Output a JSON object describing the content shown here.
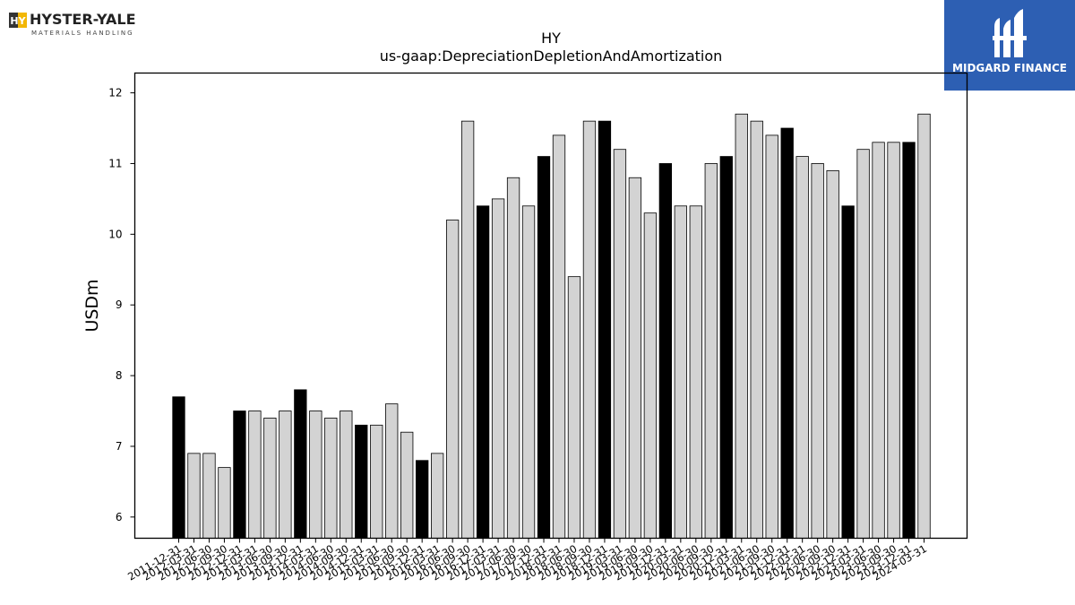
{
  "branding": {
    "left_logo": {
      "name": "HYSTER-YALE",
      "tagline": "MATERIALS HANDLING",
      "mark_text": "HY"
    },
    "right_logo": {
      "name": "MIDGARD FINANCE"
    }
  },
  "chart_data": {
    "type": "bar",
    "title": "HY",
    "subtitle": "us-gaap:DepreciationDepletionAndAmortization",
    "xlabel": "",
    "ylabel": "USDm",
    "ylim": [
      5.7,
      12.28
    ],
    "yticks": [
      6,
      7,
      8,
      9,
      10,
      11,
      12
    ],
    "grid": false,
    "colors": {
      "fourth_quarter": "#000000",
      "other": "#d3d3d3",
      "edge": "#000000"
    },
    "categories": [
      "2011-12-31",
      "2012-03-31",
      "2012-06-30",
      "2012-09-30",
      "2012-12-31",
      "2013-03-31",
      "2013-06-30",
      "2013-09-30",
      "2013-12-31",
      "2014-03-31",
      "2014-06-30",
      "2014-09-30",
      "2014-12-31",
      "2015-03-31",
      "2015-06-30",
      "2015-09-30",
      "2015-12-31",
      "2016-03-31",
      "2016-06-30",
      "2016-09-30",
      "2016-12-31",
      "2017-03-31",
      "2017-06-30",
      "2017-09-30",
      "2017-12-31",
      "2018-03-31",
      "2018-06-30",
      "2018-09-30",
      "2018-12-31",
      "2019-03-31",
      "2019-06-30",
      "2019-09-30",
      "2019-12-31",
      "2020-03-31",
      "2020-06-30",
      "2020-09-30",
      "2020-12-31",
      "2021-03-31",
      "2021-06-30",
      "2021-09-30",
      "2021-12-31",
      "2022-03-31",
      "2022-06-30",
      "2022-09-30",
      "2022-12-31",
      "2023-03-31",
      "2023-06-30",
      "2023-09-30",
      "2023-12-31",
      "2024-03-31"
    ],
    "tick_labels": [
      "2011-12-31",
      "2012-03-31",
      "2012-06-30",
      "2012-09-30",
      "2012-12-31",
      "2013-03-31",
      "2013-06-30",
      "2013-09-30",
      "2013-12-31",
      "2014-03-31",
      "2014-06-30",
      "2014-09-30",
      "2014-12-31",
      "2015-03-31",
      "2015-06-30",
      "2015-09-30",
      "2015-12-31",
      "2016-03-31",
      "2016-06-30",
      "2016-09-30",
      "2016-12-31",
      "2017-03-31",
      "2017-06-30",
      "2017-09-30",
      "2017-12-31",
      "2018-03-31",
      "2018-06-30",
      "2018-09-30",
      "2018-12-31",
      "2019-03-31",
      "2019-06-30",
      "2019-09-30",
      "2019-12-31",
      "2020-03-31",
      "2020-06-30",
      "2020-09-30",
      "2020-12-31",
      "2021-03-31",
      "2021-06-30",
      "2021-09-30",
      "2021-12-31",
      "2022-03-31",
      "2022-06-30",
      "2022-09-30",
      "2022-12-31",
      "2023-03-31",
      "2023-06-30",
      "2023-09-30",
      "2023-12-31",
      "2024-03-31"
    ],
    "values": [
      7.7,
      6.9,
      6.9,
      6.7,
      7.5,
      7.5,
      7.4,
      7.5,
      7.8,
      7.5,
      7.4,
      7.5,
      7.3,
      7.3,
      7.6,
      7.2,
      6.8,
      6.9,
      10.2,
      11.6,
      10.4,
      10.5,
      10.8,
      10.4,
      11.1,
      11.4,
      9.4,
      11.6,
      11.6,
      11.2,
      10.8,
      10.3,
      11.0,
      10.4,
      10.4,
      11.0,
      11.1,
      11.7,
      11.6,
      11.4,
      11.5,
      11.1,
      11.0,
      10.9,
      10.4,
      11.2,
      11.3,
      11.3,
      11.3,
      11.7
    ]
  }
}
